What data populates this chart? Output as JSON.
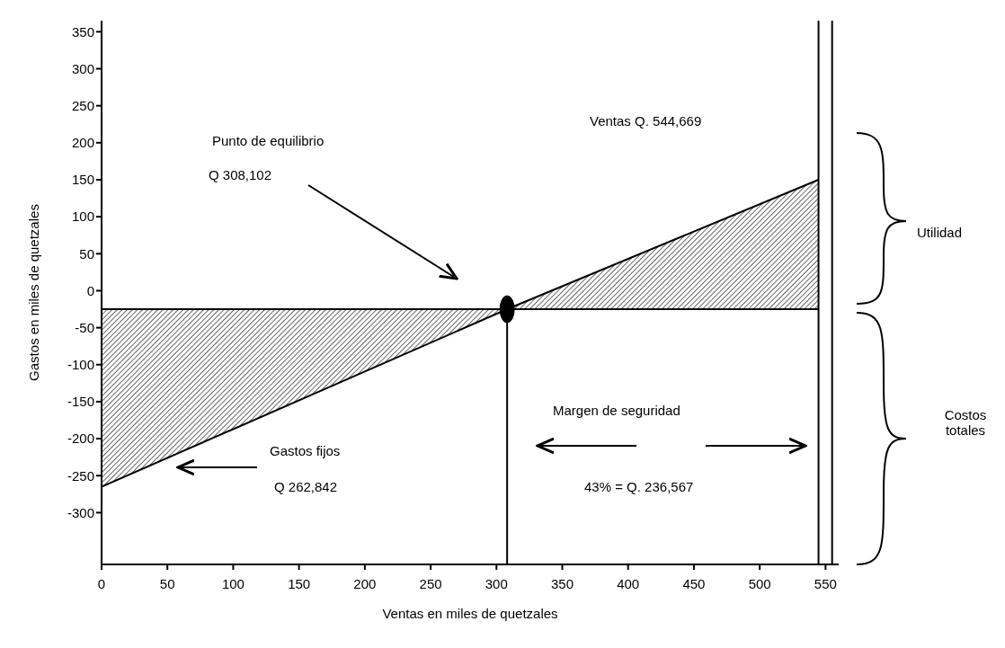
{
  "chart_data": {
    "type": "area",
    "xlabel": "Ventas en miles de quetzales",
    "ylabel": "Gastos en miles de quetzales",
    "xlim": [
      0,
      560
    ],
    "xticks": [
      0,
      50,
      100,
      150,
      200,
      250,
      300,
      350,
      400,
      450,
      500,
      550
    ],
    "ylim": [
      -370,
      365
    ],
    "yticks": [
      -300,
      -250,
      -200,
      -150,
      -100,
      -50,
      0,
      50,
      100,
      150,
      200,
      250,
      300,
      350
    ],
    "grid": false,
    "legend": false,
    "series": [
      {
        "color": "#000000",
        "x": [
          0,
          308.102,
          544.669
        ],
        "values": [
          -265,
          -25,
          150
        ]
      },
      {
        "type": "scatter",
        "color": "#000000",
        "marker": "circle",
        "x": [
          308.102
        ],
        "values": [
          -25
        ]
      }
    ],
    "ref_lines": [
      {
        "axis": "y",
        "value": -25
      },
      {
        "axis": "x",
        "value": 308.102
      },
      {
        "axis": "x",
        "value": 544.669
      },
      {
        "axis": "x",
        "value": 555
      }
    ],
    "annotations": [
      "Punto de equilibrio",
      "Q 308,102",
      "Ventas Q. 544,669",
      "Gastos fijos",
      "Q 262,842",
      "Margen de seguridad",
      "43% = Q. 236,567",
      "Utilidad",
      "Costos totales"
    ]
  }
}
